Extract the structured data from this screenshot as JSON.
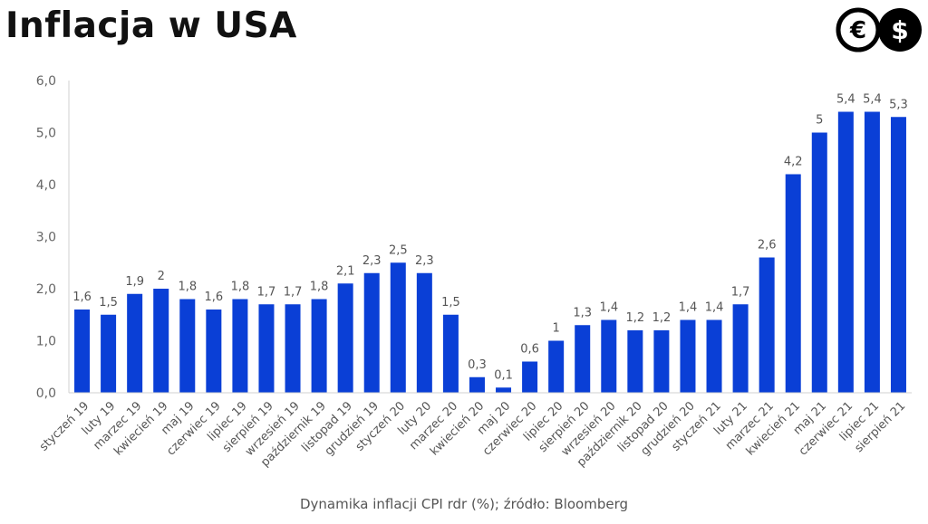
{
  "header": {
    "title": "Inflacja w USA",
    "logo": {
      "icon_left": "euro-icon",
      "icon_right": "dollar-icon",
      "left_glyph": "€",
      "right_glyph": "$"
    }
  },
  "caption": "Dynamika inflacji CPI rdr (%); źródło: Bloomberg",
  "chart_data": {
    "type": "bar",
    "title": "",
    "xlabel": "",
    "ylabel": "",
    "ylim": [
      0,
      6
    ],
    "yticks": [
      "0,0",
      "1,0",
      "2,0",
      "3,0",
      "4,0",
      "5,0",
      "6,0"
    ],
    "grid": false,
    "bar_color": "#0a3fd6",
    "categories": [
      "styczeń 19",
      "luty 19",
      "marzec 19",
      "kwiecień 19",
      "maj 19",
      "czerwiec 19",
      "lipiec 19",
      "sierpień 19",
      "wrzesień 19",
      "październik 19",
      "listopad 19",
      "grudzień 19",
      "styczeń 20",
      "luty 20",
      "marzec 20",
      "kwiecień 20",
      "maj 20",
      "czerwiec 20",
      "lipiec 20",
      "sierpień 20",
      "wrzesień 20",
      "październik 20",
      "listopad 20",
      "grudzień 20",
      "styczeń 21",
      "luty 21",
      "marzec 21",
      "kwiecień 21",
      "maj 21",
      "czerwiec 21",
      "lipiec 21",
      "sierpień 21"
    ],
    "values": [
      1.6,
      1.5,
      1.9,
      2.0,
      1.8,
      1.6,
      1.8,
      1.7,
      1.7,
      1.8,
      2.1,
      2.3,
      2.5,
      2.3,
      1.5,
      0.3,
      0.1,
      0.6,
      1.0,
      1.3,
      1.4,
      1.2,
      1.2,
      1.4,
      1.4,
      1.7,
      2.6,
      4.2,
      5.0,
      5.4,
      5.4,
      5.3
    ],
    "value_labels": [
      "1,6",
      "1,5",
      "1,9",
      "2",
      "1,8",
      "1,6",
      "1,8",
      "1,7",
      "1,7",
      "1,8",
      "2,1",
      "2,3",
      "2,5",
      "2,3",
      "1,5",
      "0,3",
      "0,1",
      "0,6",
      "1",
      "1,3",
      "1,4",
      "1,2",
      "1,2",
      "1,4",
      "1,4",
      "1,7",
      "2,6",
      "4,2",
      "5",
      "5,4",
      "5,4",
      "5,3"
    ]
  }
}
